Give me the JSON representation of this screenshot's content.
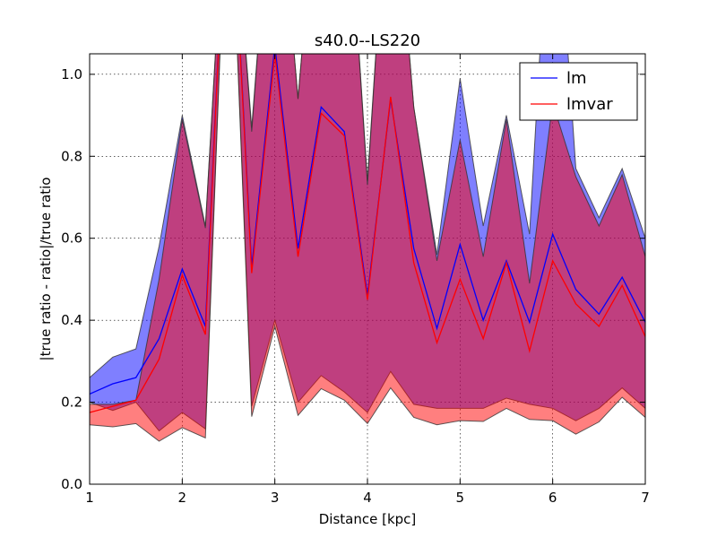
{
  "chart_data": {
    "type": "line",
    "title": "s40.0--LS220",
    "xlabel": "Distance [kpc]",
    "ylabel": "|true ratio - ratio|/true ratio",
    "xlim": [
      1,
      7
    ],
    "ylim": [
      0,
      1.05
    ],
    "xticks": [
      "1",
      "2",
      "3",
      "4",
      "5",
      "6",
      "7"
    ],
    "yticks": [
      "0.0",
      "0.2",
      "0.4",
      "0.6",
      "0.8",
      "1.0"
    ],
    "grid": true,
    "legend_position": "top-right",
    "x": [
      1.0,
      1.25,
      1.5,
      1.75,
      2.0,
      2.25,
      2.5,
      2.75,
      3.0,
      3.25,
      3.5,
      3.75,
      4.0,
      4.25,
      4.5,
      4.75,
      5.0,
      5.25,
      5.5,
      5.75,
      6.0,
      6.25,
      6.5,
      6.75,
      7.0
    ],
    "series": [
      {
        "name": "lm",
        "color": "#0000ff",
        "fill_color": "#0000ff",
        "values": [
          0.22,
          0.245,
          0.26,
          0.355,
          0.525,
          0.385,
          1.6,
          0.53,
          1.07,
          0.575,
          0.92,
          0.86,
          0.46,
          0.94,
          0.575,
          0.38,
          0.585,
          0.4,
          0.545,
          0.395,
          0.61,
          0.475,
          0.415,
          0.505,
          0.395
        ],
        "band_upper": [
          0.26,
          0.31,
          0.33,
          0.58,
          0.9,
          0.63,
          1.6,
          0.87,
          1.6,
          0.94,
          1.6,
          1.6,
          0.74,
          1.6,
          0.92,
          0.56,
          0.99,
          0.63,
          0.9,
          0.61,
          1.6,
          0.77,
          0.65,
          0.77,
          0.6
        ],
        "band_lower": [
          0.2,
          0.18,
          0.2,
          0.13,
          0.175,
          0.135,
          1.6,
          0.19,
          0.4,
          0.2,
          0.265,
          0.225,
          0.175,
          0.275,
          0.195,
          0.185,
          0.185,
          0.185,
          0.21,
          0.195,
          0.185,
          0.155,
          0.185,
          0.235,
          0.185
        ]
      },
      {
        "name": "lmvar",
        "color": "#ff0000",
        "fill_color": "#ff0000",
        "values": [
          0.175,
          0.19,
          0.205,
          0.305,
          0.51,
          0.365,
          1.6,
          0.515,
          1.05,
          0.555,
          0.905,
          0.85,
          0.45,
          0.945,
          0.54,
          0.345,
          0.5,
          0.355,
          0.54,
          0.325,
          0.545,
          0.44,
          0.385,
          0.485,
          0.36
        ],
        "band_upper": [
          0.195,
          0.195,
          0.205,
          0.5,
          0.89,
          0.625,
          1.6,
          0.86,
          1.6,
          0.94,
          1.6,
          1.6,
          0.73,
          1.6,
          0.92,
          0.545,
          0.84,
          0.555,
          0.89,
          0.49,
          0.93,
          0.75,
          0.63,
          0.755,
          0.555
        ],
        "band_lower": [
          0.145,
          0.14,
          0.148,
          0.105,
          0.138,
          0.113,
          1.6,
          0.165,
          0.385,
          0.168,
          0.233,
          0.205,
          0.148,
          0.235,
          0.163,
          0.145,
          0.155,
          0.153,
          0.185,
          0.158,
          0.155,
          0.122,
          0.152,
          0.212,
          0.163
        ]
      }
    ]
  }
}
